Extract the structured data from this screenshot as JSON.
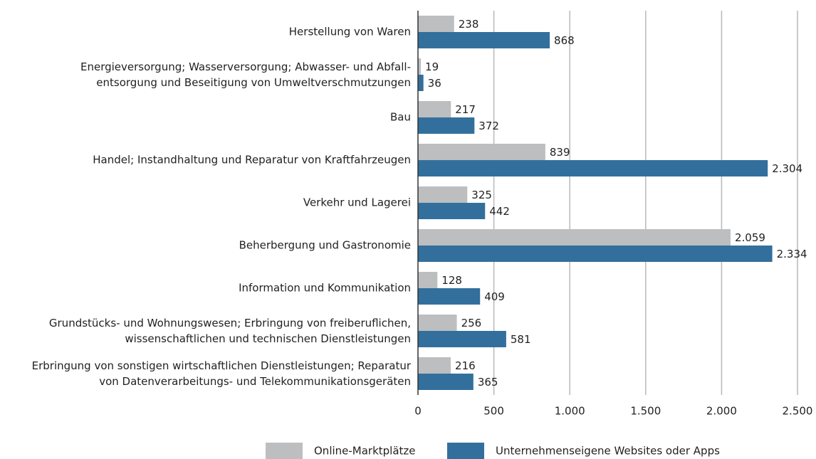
{
  "chart_data": {
    "type": "barh",
    "categories": [
      "Herstellung von Waren",
      "Energieversorgung; Wasserversorgung; Abwasser- und Abfall-\nentsorgung und Beseitigung von Umweltverschmutzungen",
      "Bau",
      "Handel; Instandhaltung und Reparatur von Kraftfahrzeugen",
      "Verkehr und Lagerei",
      "Beherbergung und Gastronomie",
      "Information und Kommunikation",
      "Grundstücks- und Wohnungswesen; Erbringung von freiberuflichen,\nwissenschaftlichen und technischen Dienstleistungen",
      "Erbringung von sonstigen wirtschaftlichen Dienstleistungen; Reparatur\nvon Datenverarbeitungs- und Telekommunikationsgeräten"
    ],
    "series": [
      {
        "name": "Online-Marktplätze",
        "color": "#bcbec0",
        "values": [
          238,
          19,
          217,
          839,
          325,
          2059,
          128,
          256,
          216
        ],
        "value_labels": [
          "238",
          "19",
          "217",
          "839",
          "325",
          "2.059",
          "128",
          "256",
          "216"
        ]
      },
      {
        "name": "Unternehmenseigene Websites oder Apps",
        "color": "#336f9c",
        "values": [
          868,
          36,
          372,
          2304,
          442,
          2334,
          409,
          581,
          365
        ],
        "value_labels": [
          "868",
          "36",
          "372",
          "2.304",
          "442",
          "2.334",
          "409",
          "581",
          "365"
        ]
      }
    ],
    "xlim": [
      0,
      2500
    ],
    "xticks": [
      0,
      500,
      {
        "value": 1000,
        "label": "1.000"
      },
      {
        "value": 1500,
        "label": "1.500"
      },
      {
        "value": 2000,
        "label": "2.000"
      },
      {
        "value": 2500,
        "label": "2.500"
      }
    ],
    "grid": true,
    "legend": "bottom"
  }
}
